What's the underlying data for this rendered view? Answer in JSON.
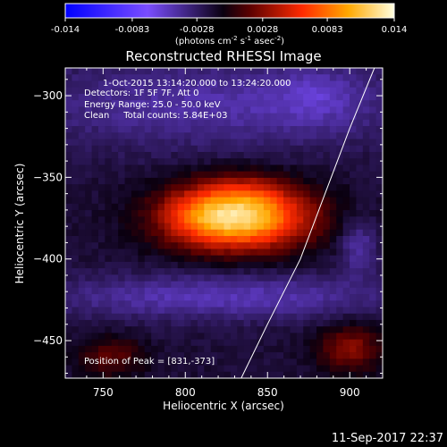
{
  "colorbar": {
    "ticks": [
      "-0.014",
      "-0.0083",
      "-0.0028",
      "0.0028",
      "0.0083",
      "0.014"
    ],
    "tick_values": [
      -0.014,
      -0.0083,
      -0.0028,
      0.0028,
      0.0083,
      0.014
    ],
    "range": [
      -0.014,
      0.014
    ],
    "label_main": "(photons cm",
    "label_sup1": "-2",
    "label_mid": " s",
    "label_sup2": "-1",
    "label_end": " asec",
    "label_sup3": "-2",
    "label_close": ")"
  },
  "chart_data": {
    "type": "heatmap",
    "title": "Reconstructed RHESSI Image",
    "xlabel": "Heliocentric X (arcsec)",
    "ylabel": "Heliocentric Y (arcsec)",
    "xlim": [
      727,
      920
    ],
    "ylim": [
      -473,
      -283
    ],
    "xticks": [
      750,
      800,
      850,
      900
    ],
    "yticks": [
      -300,
      -350,
      -400,
      -450
    ],
    "xtick_labels": [
      "750",
      "800",
      "850",
      "900"
    ],
    "ytick_labels": [
      "−300",
      "−350",
      "−400",
      "−450"
    ],
    "info_lines": [
      "1-Oct-2015 13:14:20.000 to 13:24:20.000",
      "Detectors: 1F 5F 7F, Att 0",
      "Energy Range: 25.0 - 50.0 keV",
      "Clean     Total counts: 5.84E+03"
    ],
    "peak_text": "Position of Peak = [831,-373]",
    "peak": [
      831,
      -373
    ],
    "limb_points": [
      [
        834,
        -473
      ],
      [
        850,
        -440
      ],
      [
        870,
        -400
      ],
      [
        885,
        -360
      ],
      [
        900,
        -320
      ],
      [
        915,
        -283
      ]
    ],
    "sources": [
      {
        "x": 832,
        "y": -374,
        "sx": 30,
        "sy": 14,
        "amp": 0.014
      },
      {
        "x": 808,
        "y": -373,
        "sx": 16,
        "sy": 12,
        "amp": 0.0015
      },
      {
        "x": 838,
        "y": -356,
        "sx": 14,
        "sy": 8,
        "amp": 0.0012
      },
      {
        "x": 820,
        "y": -305,
        "sx": 90,
        "sy": 20,
        "amp": -0.003
      },
      {
        "x": 822,
        "y": -423,
        "sx": 80,
        "sy": 10,
        "amp": -0.0034
      },
      {
        "x": 755,
        "y": -460,
        "sx": 14,
        "sy": 9,
        "amp": 0.0032
      },
      {
        "x": 900,
        "y": -455,
        "sx": 14,
        "sy": 10,
        "amp": 0.0045
      },
      {
        "x": 905,
        "y": -392,
        "sx": 8,
        "sy": 12,
        "amp": -0.003
      },
      {
        "x": 880,
        "y": -300,
        "sx": 18,
        "sy": 12,
        "amp": -0.0018
      }
    ],
    "baseline": -0.0016
  },
  "footer": {
    "timestamp": "11-Sep-2017 22:37"
  }
}
